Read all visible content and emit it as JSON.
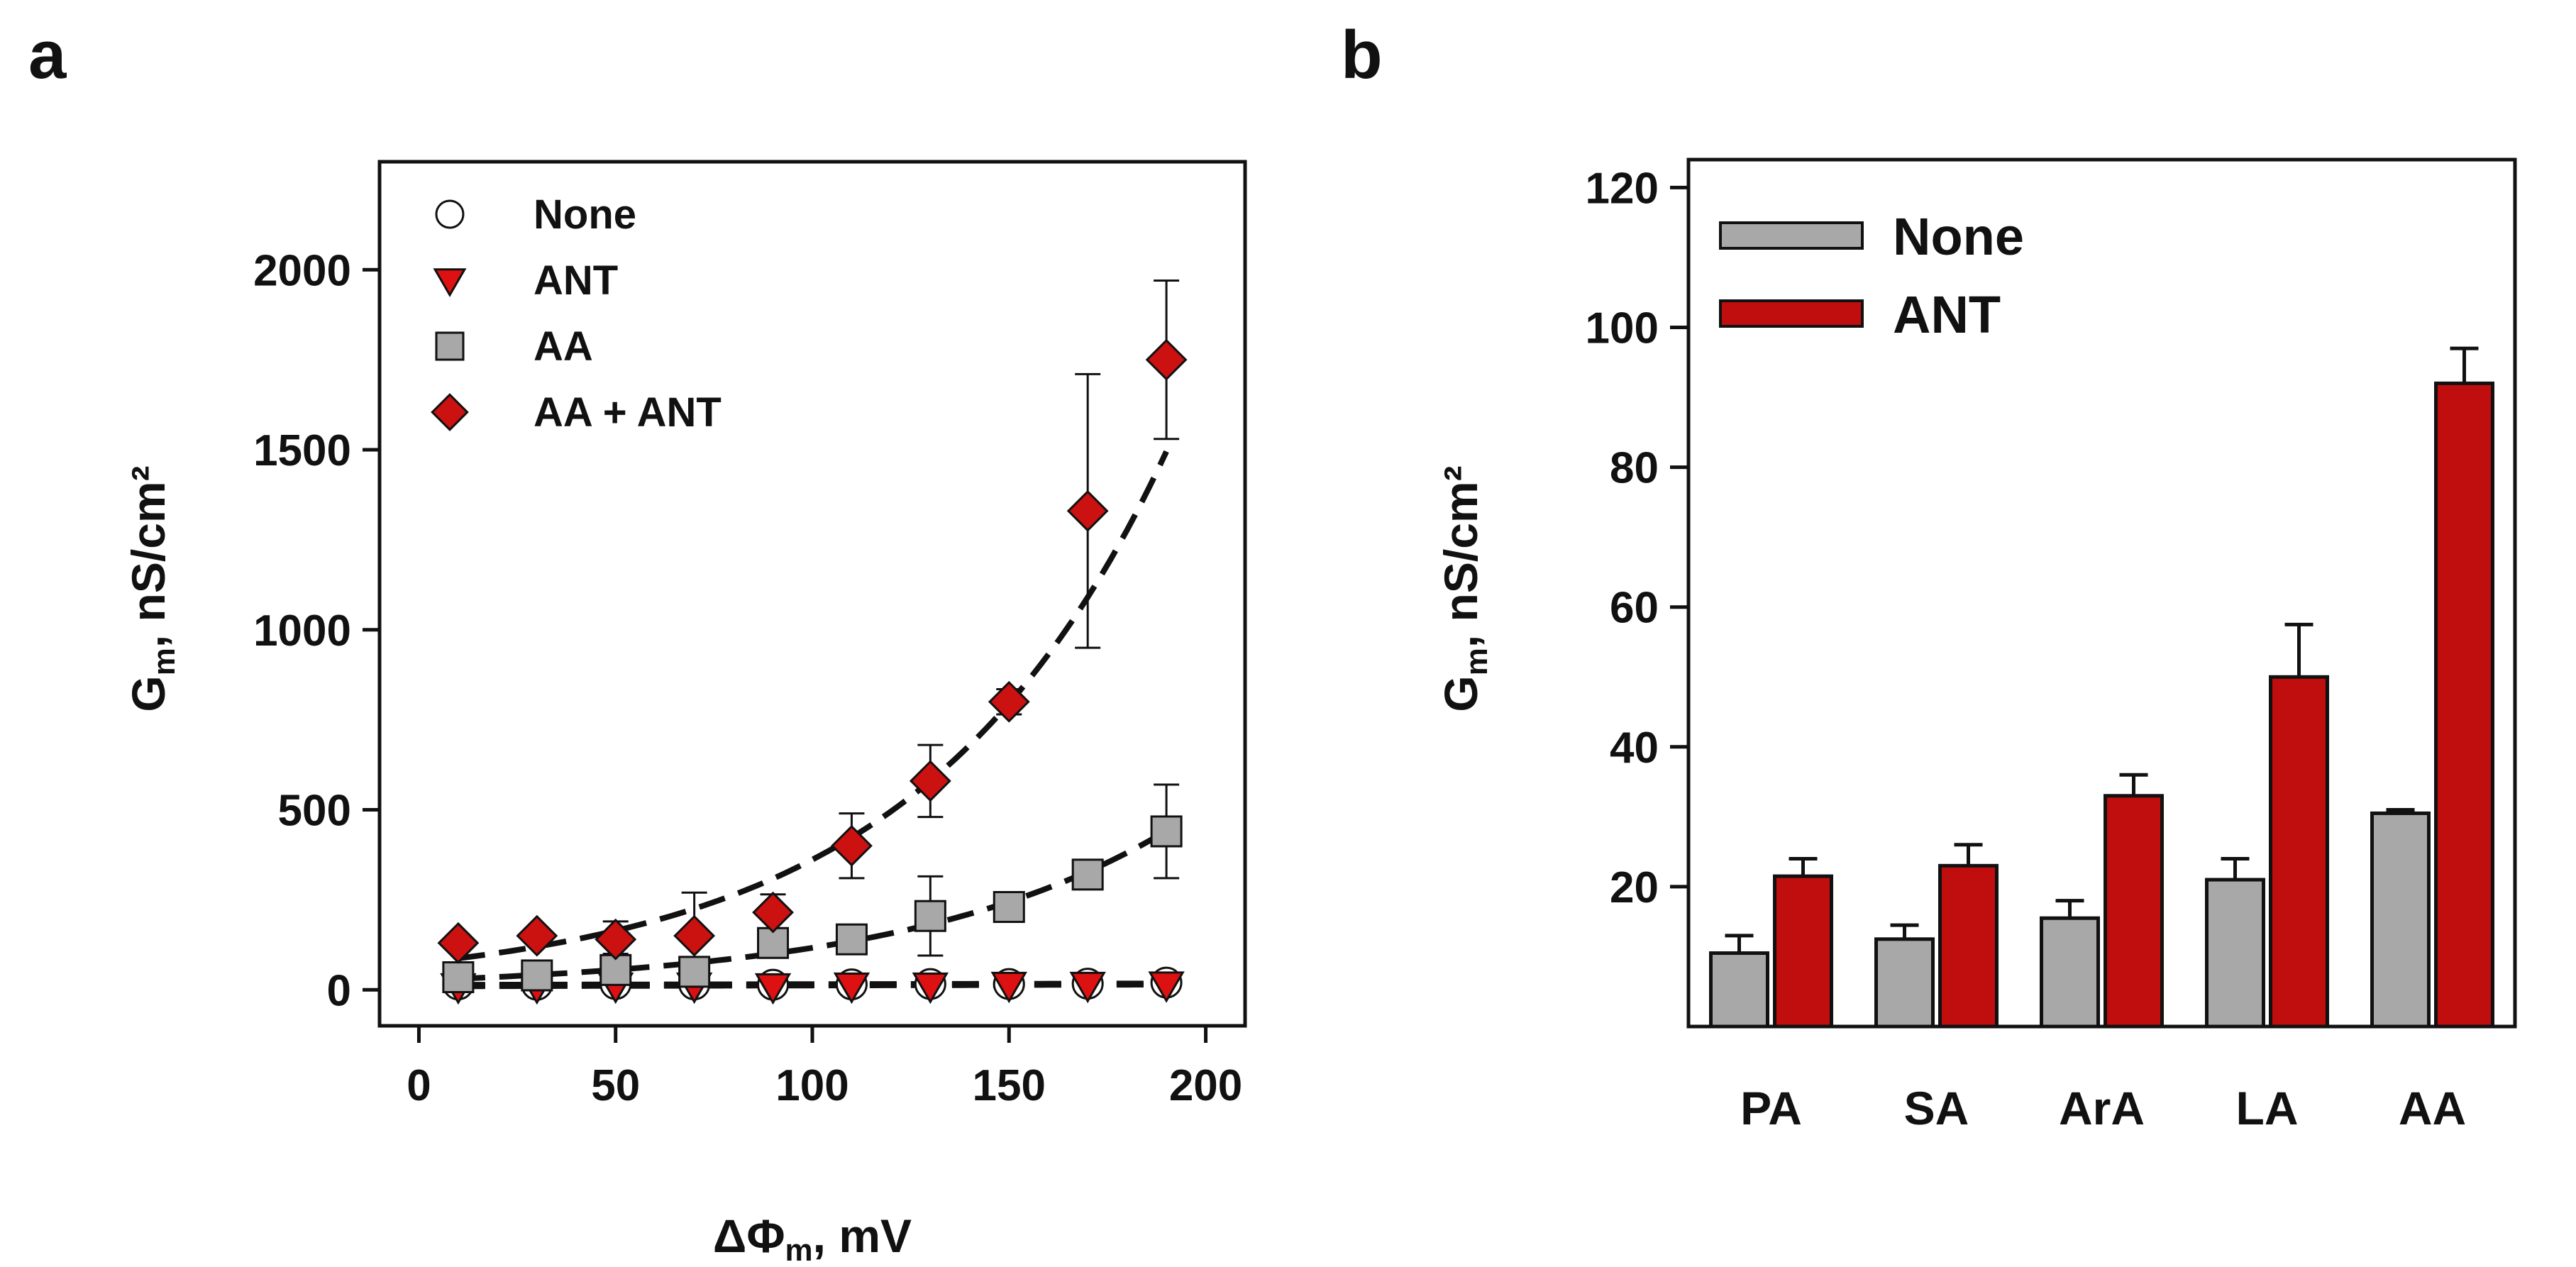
{
  "chart_data": [
    {
      "panel": "a",
      "type": "scatter",
      "title": "",
      "xlabel": "ΔΦm, mV",
      "ylabel": "Gm, nS/cm²",
      "xlim": [
        -10,
        210
      ],
      "ylim": [
        -100,
        2300
      ],
      "xticks": [
        0,
        50,
        100,
        150,
        200
      ],
      "yticks": [
        0,
        500,
        1000,
        1500,
        2000
      ],
      "legend_position": "top-left",
      "x": [
        10,
        30,
        50,
        70,
        90,
        110,
        130,
        150,
        170,
        190
      ],
      "series": [
        {
          "name": "None",
          "marker": "circle",
          "color": "#ffffff",
          "values": [
            15,
            14,
            16,
            15,
            14,
            15,
            16,
            16,
            17,
            20
          ],
          "errors": [
            10,
            10,
            10,
            10,
            10,
            10,
            10,
            10,
            10,
            12
          ]
        },
        {
          "name": "ANT",
          "marker": "triangle-down",
          "color": "#dd1111",
          "values": [
            10,
            10,
            12,
            12,
            10,
            12,
            12,
            14,
            14,
            15
          ],
          "errors": [
            8,
            8,
            8,
            8,
            8,
            8,
            8,
            8,
            8,
            10
          ]
        },
        {
          "name": "AA",
          "marker": "square",
          "color": "#a8a8a8",
          "values": [
            35,
            40,
            55,
            50,
            130,
            140,
            205,
            230,
            320,
            440
          ],
          "errors": [
            40,
            40,
            45,
            40,
            40,
            30,
            110,
            25,
            25,
            130
          ]
        },
        {
          "name": "AA + ANT",
          "marker": "diamond",
          "color": "#cc1111",
          "values": [
            130,
            150,
            140,
            150,
            215,
            400,
            580,
            800,
            1330,
            1750
          ],
          "errors": [
            20,
            20,
            50,
            120,
            50,
            90,
            100,
            35,
            380,
            220
          ]
        }
      ]
    },
    {
      "panel": "b",
      "type": "bar",
      "title": "",
      "xlabel": "",
      "ylabel": "Gm, nS/cm²",
      "ylim": [
        0,
        124
      ],
      "yticks": [
        20,
        40,
        60,
        80,
        100,
        120
      ],
      "categories": [
        "PA",
        "SA",
        "ArA",
        "LA",
        "AA"
      ],
      "legend_position": "top-left",
      "series": [
        {
          "name": "None",
          "color": "#a8a8a8",
          "values": [
            10.5,
            12.5,
            15.5,
            21,
            30.5
          ],
          "errors": [
            2.5,
            2,
            2.5,
            3,
            0.5
          ]
        },
        {
          "name": "ANT",
          "color": "#c00d0d",
          "values": [
            21.5,
            23,
            33,
            50,
            92
          ],
          "errors": [
            2.5,
            3,
            3,
            7.5,
            5
          ]
        }
      ]
    }
  ],
  "panels": {
    "a": "a",
    "b": "b"
  },
  "subscript": "m"
}
